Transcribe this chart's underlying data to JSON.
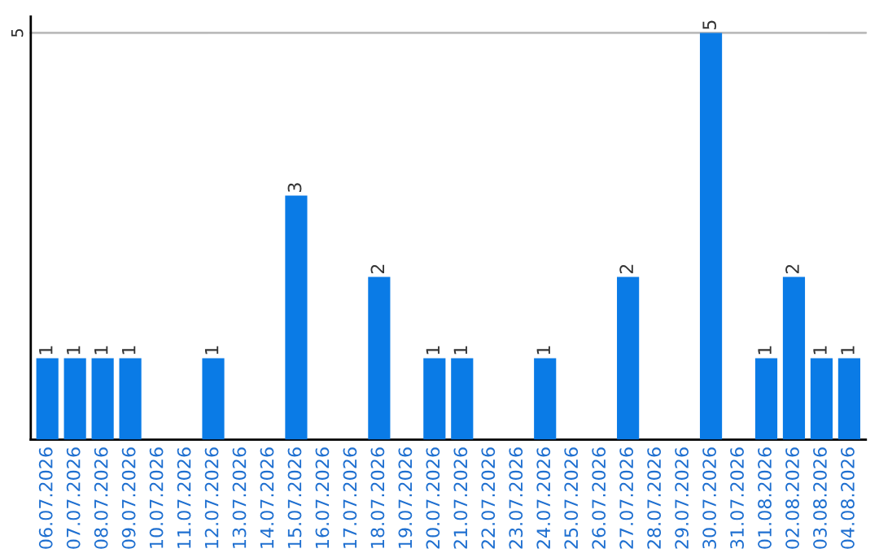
{
  "chart_data": {
    "type": "bar",
    "categories": [
      "06.07.2026",
      "07.07.2026",
      "08.07.2026",
      "09.07.2026",
      "10.07.2026",
      "11.07.2026",
      "12.07.2026",
      "13.07.2026",
      "14.07.2026",
      "15.07.2026",
      "16.07.2026",
      "17.07.2026",
      "18.07.2026",
      "19.07.2026",
      "20.07.2026",
      "21.07.2026",
      "22.07.2026",
      "23.07.2026",
      "24.07.2026",
      "25.07.2026",
      "26.07.2026",
      "27.07.2026",
      "28.07.2026",
      "29.07.2026",
      "30.07.2026",
      "31.07.2026",
      "01.08.2026",
      "02.08.2026",
      "03.08.2026",
      "04.08.2026"
    ],
    "values": [
      1,
      1,
      1,
      1,
      0,
      0,
      1,
      0,
      0,
      3,
      0,
      0,
      2,
      0,
      1,
      1,
      0,
      0,
      1,
      0,
      0,
      2,
      0,
      0,
      5,
      0,
      1,
      2,
      1,
      1
    ],
    "value_labels": [
      "1",
      "1",
      "1",
      "1",
      null,
      null,
      "1",
      null,
      null,
      "3",
      null,
      null,
      "2",
      null,
      "1",
      "1",
      null,
      null,
      "1",
      null,
      null,
      "2",
      null,
      null,
      "5",
      null,
      "1",
      "2",
      "1",
      "1"
    ],
    "color": "#0a7be6",
    "ylim": [
      0,
      5.2
    ],
    "yticks": [
      5
    ],
    "grid": "y"
  }
}
